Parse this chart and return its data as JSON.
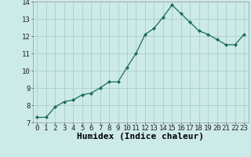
{
  "x": [
    0,
    1,
    2,
    3,
    4,
    5,
    6,
    7,
    8,
    9,
    10,
    11,
    12,
    13,
    14,
    15,
    16,
    17,
    18,
    19,
    20,
    21,
    22,
    23
  ],
  "y": [
    7.3,
    7.3,
    7.9,
    8.2,
    8.3,
    8.6,
    8.7,
    9.0,
    9.35,
    9.35,
    10.2,
    11.0,
    12.1,
    12.45,
    13.1,
    13.8,
    13.3,
    12.8,
    12.3,
    12.1,
    11.8,
    11.5,
    11.5,
    12.1
  ],
  "line_color": "#1a6b5a",
  "marker": "D",
  "marker_size": 2.0,
  "background_color": "#cceae8",
  "grid_color": "#aacfcd",
  "xlabel": "Humidex (Indice chaleur)",
  "xlabel_fontsize": 8,
  "xlim": [
    -0.5,
    23.5
  ],
  "ylim": [
    7,
    14
  ],
  "yticks": [
    7,
    8,
    9,
    10,
    11,
    12,
    13,
    14
  ],
  "xticks": [
    0,
    1,
    2,
    3,
    4,
    5,
    6,
    7,
    8,
    9,
    10,
    11,
    12,
    13,
    14,
    15,
    16,
    17,
    18,
    19,
    20,
    21,
    22,
    23
  ],
  "tick_fontsize": 6.5
}
